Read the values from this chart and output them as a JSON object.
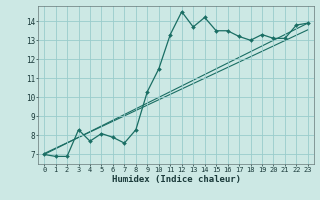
{
  "xlabel": "Humidex (Indice chaleur)",
  "bg_color": "#cce8e4",
  "grid_color": "#99cccc",
  "line_color": "#1a6e64",
  "xlim": [
    -0.5,
    23.5
  ],
  "ylim": [
    6.5,
    14.8
  ],
  "xticks": [
    0,
    1,
    2,
    3,
    4,
    5,
    6,
    7,
    8,
    9,
    10,
    11,
    12,
    13,
    14,
    15,
    16,
    17,
    18,
    19,
    20,
    21,
    22,
    23
  ],
  "yticks": [
    7,
    8,
    9,
    10,
    11,
    12,
    13,
    14
  ],
  "line1_x": [
    0,
    1,
    2,
    3,
    4,
    5,
    6,
    7,
    8,
    9,
    10,
    11,
    12,
    13,
    14,
    15,
    16,
    17,
    18,
    19,
    20,
    21,
    22,
    23
  ],
  "line1_y": [
    7.0,
    6.9,
    6.9,
    8.3,
    7.7,
    8.1,
    7.9,
    7.6,
    8.3,
    10.3,
    11.5,
    13.3,
    14.5,
    13.7,
    14.2,
    13.5,
    13.5,
    13.2,
    13.0,
    13.3,
    13.1,
    13.1,
    13.8,
    13.9
  ],
  "line2_x": [
    0,
    23
  ],
  "line2_y": [
    7.0,
    13.9
  ],
  "line3_x": [
    0,
    23
  ],
  "line3_y": [
    7.05,
    13.55
  ],
  "tick_fontsize": 5.0,
  "xlabel_fontsize": 6.5,
  "xlabel_fontweight": "bold"
}
